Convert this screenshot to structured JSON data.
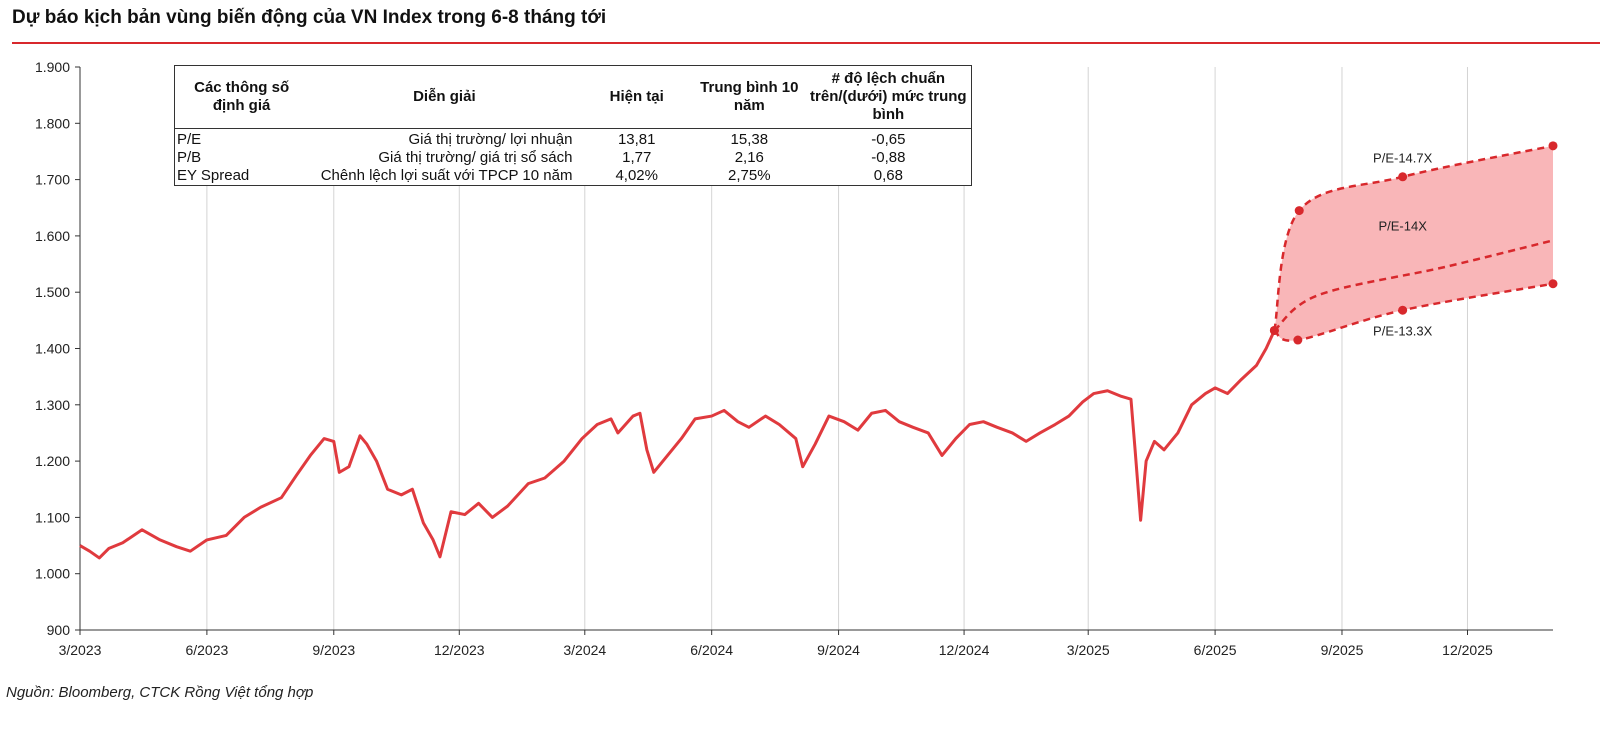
{
  "title": "Dự báo kịch bản vùng biến động của VN Index trong 6-8 tháng tới",
  "source": "Nguồn: Bloomberg, CTCK Rồng Việt tổng hợp",
  "colors": {
    "line": "#e03a3e",
    "band": "#f9b6b8",
    "accent": "#d8282c"
  },
  "table": {
    "headers": [
      "Các thông số định giá",
      "Diễn  giải",
      "Hiện tại",
      "Trung bình 10 năm",
      "# độ lệch chuẩn trên/(dưới) mức trung bình"
    ],
    "rows": [
      {
        "param": "P/E",
        "desc": "Giá thị trường/ lợi nhuận",
        "current": "13,81",
        "avg": "15,38",
        "sd": "-0,65"
      },
      {
        "param": "P/B",
        "desc": "Giá thị trường/ giá trị sổ sách",
        "current": "1,77",
        "avg": "2,16",
        "sd": "-0,88"
      },
      {
        "param": "EY Spread",
        "desc": "Chênh lệch lợi suất với TPCP 10 năm",
        "current": "4,02%",
        "avg": "2,75%",
        "sd": "0,68"
      }
    ]
  },
  "chart_data": {
    "type": "line",
    "title": "Dự báo kịch bản vùng biến động của VN Index trong 6-8 tháng tới",
    "xlabel": "",
    "ylabel": "",
    "ylim": [
      900,
      1900
    ],
    "yticks": [
      900,
      1000,
      1100,
      1200,
      1300,
      1400,
      1500,
      1600,
      1700,
      1800,
      1900
    ],
    "ytick_labels": [
      "900",
      "1.000",
      "1.100",
      "1.200",
      "1.300",
      "1.400",
      "1.500",
      "1.600",
      "1.700",
      "1.800",
      "1.900"
    ],
    "xlim": [
      "2023-03",
      "2026-02"
    ],
    "xticks": [
      "2023-03",
      "2023-06",
      "2023-09",
      "2023-12",
      "2024-03",
      "2024-06",
      "2024-09",
      "2024-12",
      "2025-03",
      "2025-06",
      "2025-09",
      "2025-12"
    ],
    "xtick_labels": [
      "3/2023",
      "6/2023",
      "9/2023",
      "12/2023",
      "3/2024",
      "6/2024",
      "9/2024",
      "12/2024",
      "3/2025",
      "6/2025",
      "9/2025",
      "12/2025"
    ],
    "grid": "vertical",
    "series": [
      {
        "name": "",
        "style": "solid",
        "points": [
          [
            "2023-03-01",
            1050
          ],
          [
            "2023-03-08",
            1040
          ],
          [
            "2023-03-15",
            1028
          ],
          [
            "2023-03-22",
            1045
          ],
          [
            "2023-04-01",
            1055
          ],
          [
            "2023-04-15",
            1078
          ],
          [
            "2023-04-28",
            1060
          ],
          [
            "2023-05-10",
            1048
          ],
          [
            "2023-05-20",
            1040
          ],
          [
            "2023-06-01",
            1060
          ],
          [
            "2023-06-15",
            1068
          ],
          [
            "2023-06-28",
            1100
          ],
          [
            "2023-07-10",
            1118
          ],
          [
            "2023-07-25",
            1135
          ],
          [
            "2023-08-05",
            1175
          ],
          [
            "2023-08-15",
            1210
          ],
          [
            "2023-08-25",
            1240
          ],
          [
            "2023-09-01",
            1235
          ],
          [
            "2023-09-05",
            1180
          ],
          [
            "2023-09-12",
            1190
          ],
          [
            "2023-09-20",
            1245
          ],
          [
            "2023-09-25",
            1230
          ],
          [
            "2023-10-02",
            1200
          ],
          [
            "2023-10-10",
            1150
          ],
          [
            "2023-10-20",
            1140
          ],
          [
            "2023-10-28",
            1150
          ],
          [
            "2023-11-05",
            1090
          ],
          [
            "2023-11-12",
            1060
          ],
          [
            "2023-11-17",
            1030
          ],
          [
            "2023-11-25",
            1110
          ],
          [
            "2023-12-05",
            1105
          ],
          [
            "2023-12-15",
            1125
          ],
          [
            "2023-12-25",
            1100
          ],
          [
            "2024-01-05",
            1120
          ],
          [
            "2024-01-20",
            1160
          ],
          [
            "2024-02-01",
            1170
          ],
          [
            "2024-02-15",
            1200
          ],
          [
            "2024-02-28",
            1240
          ],
          [
            "2024-03-10",
            1265
          ],
          [
            "2024-03-20",
            1275
          ],
          [
            "2024-03-25",
            1250
          ],
          [
            "2024-04-05",
            1280
          ],
          [
            "2024-04-10",
            1285
          ],
          [
            "2024-04-15",
            1220
          ],
          [
            "2024-04-20",
            1180
          ],
          [
            "2024-04-30",
            1210
          ],
          [
            "2024-05-10",
            1240
          ],
          [
            "2024-05-20",
            1275
          ],
          [
            "2024-06-01",
            1280
          ],
          [
            "2024-06-10",
            1290
          ],
          [
            "2024-06-20",
            1270
          ],
          [
            "2024-06-28",
            1260
          ],
          [
            "2024-07-10",
            1280
          ],
          [
            "2024-07-20",
            1265
          ],
          [
            "2024-08-01",
            1240
          ],
          [
            "2024-08-06",
            1190
          ],
          [
            "2024-08-15",
            1230
          ],
          [
            "2024-08-25",
            1280
          ],
          [
            "2024-09-05",
            1270
          ],
          [
            "2024-09-15",
            1255
          ],
          [
            "2024-09-25",
            1285
          ],
          [
            "2024-10-05",
            1290
          ],
          [
            "2024-10-15",
            1270
          ],
          [
            "2024-10-25",
            1260
          ],
          [
            "2024-11-05",
            1250
          ],
          [
            "2024-11-15",
            1210
          ],
          [
            "2024-11-25",
            1240
          ],
          [
            "2024-12-05",
            1265
          ],
          [
            "2024-12-15",
            1270
          ],
          [
            "2024-12-25",
            1260
          ],
          [
            "2025-01-05",
            1250
          ],
          [
            "2025-01-15",
            1235
          ],
          [
            "2025-01-25",
            1250
          ],
          [
            "2025-02-05",
            1265
          ],
          [
            "2025-02-15",
            1280
          ],
          [
            "2025-02-25",
            1305
          ],
          [
            "2025-03-05",
            1320
          ],
          [
            "2025-03-15",
            1325
          ],
          [
            "2025-03-25",
            1315
          ],
          [
            "2025-04-01",
            1310
          ],
          [
            "2025-04-04",
            1220
          ],
          [
            "2025-04-08",
            1095
          ],
          [
            "2025-04-12",
            1200
          ],
          [
            "2025-04-18",
            1235
          ],
          [
            "2025-04-25",
            1220
          ],
          [
            "2025-05-05",
            1250
          ],
          [
            "2025-05-15",
            1300
          ],
          [
            "2025-05-25",
            1320
          ],
          [
            "2025-06-01",
            1330
          ],
          [
            "2025-06-10",
            1320
          ],
          [
            "2025-06-20",
            1345
          ],
          [
            "2025-07-01",
            1370
          ],
          [
            "2025-07-08",
            1400
          ],
          [
            "2025-07-14",
            1432
          ]
        ]
      },
      {
        "name": "P/E-14.7X",
        "style": "dashed",
        "markers": true,
        "points": [
          [
            "2025-07-14",
            1432
          ],
          [
            "2025-08-01",
            1645
          ],
          [
            "2025-10-15",
            1705
          ],
          [
            "2026-02-01",
            1760
          ]
        ]
      },
      {
        "name": "P/E-14X",
        "style": "dashed",
        "markers": false,
        "points": [
          [
            "2025-07-14",
            1432
          ],
          [
            "2025-08-15",
            1495
          ],
          [
            "2025-11-15",
            1545
          ],
          [
            "2026-02-01",
            1592
          ]
        ]
      },
      {
        "name": "P/E-13.3X",
        "style": "dashed",
        "markers": true,
        "points": [
          [
            "2025-07-14",
            1432
          ],
          [
            "2025-07-31",
            1415
          ],
          [
            "2025-10-15",
            1468
          ],
          [
            "2026-02-01",
            1515
          ]
        ]
      }
    ],
    "band": {
      "upper": "P/E-14.7X",
      "lower": "P/E-13.3X"
    },
    "annotations": [
      {
        "text": "P/E-14.7X",
        "x": "2025-10-15",
        "y": 1730
      },
      {
        "text": "P/E-14X",
        "x": "2025-10-15",
        "y": 1610
      },
      {
        "text": "P/E-13.3X",
        "x": "2025-10-15",
        "y": 1423
      }
    ]
  }
}
